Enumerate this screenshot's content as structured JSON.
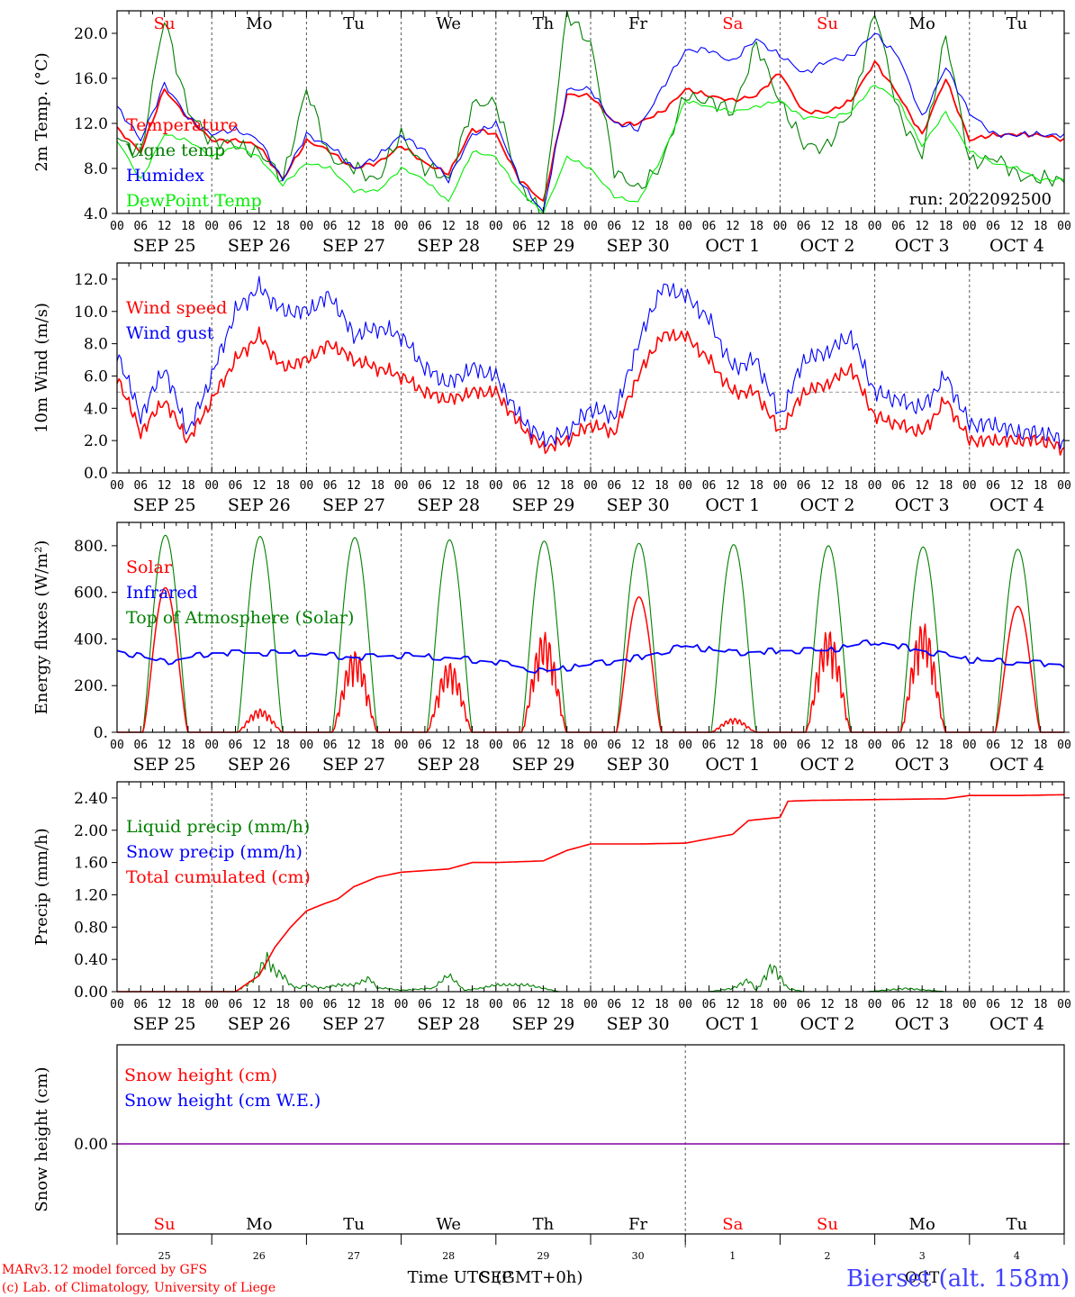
{
  "days": [
    "Su",
    "Mo",
    "Tu",
    "We",
    "Th",
    "Fr",
    "Sa",
    "Su",
    "Mo",
    "Tu"
  ],
  "weekend_days": [
    0,
    6,
    7
  ],
  "date_labels": [
    "SEP 25",
    "SEP 26",
    "SEP 27",
    "SEP 28",
    "SEP 29",
    "SEP 30",
    "OCT  1",
    "OCT  2",
    "OCT  3",
    "OCT  4"
  ],
  "hour_ticks": [
    "00",
    "06",
    "12",
    "18"
  ],
  "hour_tick_end": "00",
  "day_numbers": [
    "25",
    "26",
    "27",
    "28",
    "29",
    "30",
    "1",
    "2",
    "3",
    "4"
  ],
  "month_labels": [
    "SEP",
    "OCT"
  ],
  "xlabel": "Time UTC (GMT+0h)",
  "run_label": "run: 2022092500",
  "footer": {
    "line1": "MARv3.12 model forced by GFS",
    "line2": "(c) Lab. of Climatology, University of Liege",
    "station": "Bierset (alt. 158m)"
  },
  "colors": {
    "red": "#ff0000",
    "darkgreen": "#008000",
    "blue": "#0000ff",
    "lightgreen": "#00ee00",
    "purple": "#8000a0",
    "axis": "#000000"
  },
  "chart_data": [
    {
      "type": "line",
      "ylabel": "2m Temp. (°C)",
      "ylim": [
        4,
        22
      ],
      "yticks": [
        "4.0",
        "8.0",
        "12.0",
        "16.0",
        "20.0"
      ],
      "x_hours": [
        0,
        6,
        12,
        18,
        24,
        30,
        36,
        42,
        48,
        54,
        60,
        66,
        72,
        78,
        84,
        90,
        96,
        102,
        108,
        114,
        120,
        126,
        132,
        138,
        144,
        150,
        156,
        162,
        168,
        174,
        180,
        186,
        192,
        198,
        204,
        210,
        216,
        222,
        228,
        234,
        240
      ],
      "series": [
        {
          "name": "Temperature",
          "color": "red",
          "values": [
            11.5,
            9.5,
            15.0,
            12.5,
            10.5,
            10.5,
            10.0,
            7.0,
            10.5,
            9.5,
            8.0,
            8.5,
            10.0,
            8.5,
            7.5,
            11.5,
            11.0,
            7.0,
            5.0,
            14.5,
            14.5,
            12.0,
            12.0,
            13.0,
            15.0,
            14.5,
            14.0,
            14.5,
            16.5,
            13.0,
            13.0,
            14.0,
            17.5,
            14.5,
            11.0,
            16.0,
            10.5,
            11.0,
            11.0,
            11.0,
            10.5
          ]
        },
        {
          "name": "Vigne temp",
          "color": "darkgreen",
          "values": [
            11.0,
            9.0,
            21.5,
            13.0,
            10.5,
            10.0,
            9.5,
            7.0,
            15.0,
            9.0,
            8.0,
            7.0,
            11.0,
            8.0,
            7.0,
            13.5,
            14.0,
            6.5,
            4.0,
            22.0,
            19.0,
            8.0,
            6.0,
            8.5,
            14.5,
            14.0,
            13.0,
            19.0,
            14.0,
            10.0,
            10.0,
            13.0,
            22.0,
            13.0,
            9.0,
            20.0,
            8.5,
            9.0,
            7.5,
            7.0,
            7.0
          ]
        },
        {
          "name": "Humidex",
          "color": "blue",
          "values": [
            13.5,
            10.5,
            15.5,
            12.5,
            11.0,
            11.5,
            10.5,
            7.0,
            11.0,
            10.0,
            8.0,
            9.0,
            11.0,
            9.5,
            7.0,
            11.0,
            12.0,
            7.0,
            4.0,
            15.0,
            15.0,
            12.0,
            11.5,
            15.0,
            18.5,
            18.5,
            17.5,
            19.5,
            18.0,
            16.5,
            17.5,
            18.0,
            20.0,
            18.0,
            12.5,
            17.0,
            13.0,
            11.0,
            11.0,
            11.0,
            11.0
          ]
        },
        {
          "name": "DewPoint Temp",
          "color": "lightgreen",
          "values": [
            10.5,
            7.0,
            11.0,
            10.5,
            9.0,
            10.0,
            9.0,
            6.5,
            8.5,
            8.0,
            6.0,
            6.0,
            8.0,
            7.0,
            5.0,
            9.5,
            9.0,
            6.0,
            4.0,
            9.0,
            8.0,
            5.5,
            5.0,
            9.0,
            14.0,
            13.5,
            13.0,
            13.5,
            14.0,
            12.5,
            12.5,
            13.0,
            15.5,
            14.0,
            10.0,
            13.0,
            9.5,
            8.5,
            8.0,
            7.0,
            7.0
          ]
        }
      ]
    },
    {
      "type": "line",
      "ylabel": "10m Wind (m/s)",
      "ylim": [
        0,
        13
      ],
      "yticks": [
        "0.0",
        "2.0",
        "4.0",
        "6.0",
        "8.0",
        "10.0",
        "12.0"
      ],
      "reference_line": 5,
      "x_hours": [
        0,
        6,
        12,
        18,
        24,
        30,
        36,
        42,
        48,
        54,
        60,
        66,
        72,
        78,
        84,
        90,
        96,
        102,
        108,
        114,
        120,
        126,
        132,
        138,
        144,
        150,
        156,
        162,
        168,
        174,
        180,
        186,
        192,
        198,
        204,
        210,
        216,
        222,
        228,
        234,
        240
      ],
      "series": [
        {
          "name": "Wind speed",
          "color": "red",
          "values": [
            6.0,
            2.5,
            4.5,
            2.0,
            4.5,
            7.0,
            8.5,
            6.5,
            7.0,
            8.0,
            7.0,
            6.5,
            6.0,
            5.0,
            4.5,
            5.0,
            5.0,
            3.0,
            1.5,
            2.0,
            3.0,
            2.5,
            6.0,
            8.5,
            8.5,
            7.0,
            5.0,
            5.0,
            2.5,
            5.0,
            5.5,
            6.5,
            3.5,
            3.0,
            2.5,
            4.5,
            2.0,
            2.0,
            2.0,
            2.0,
            1.5
          ]
        },
        {
          "name": "Wind gust",
          "color": "blue",
          "values": [
            7.5,
            3.5,
            6.5,
            2.5,
            6.0,
            10.0,
            11.5,
            10.0,
            10.0,
            11.0,
            8.5,
            9.0,
            8.5,
            6.5,
            5.5,
            6.5,
            6.0,
            3.5,
            2.0,
            2.5,
            4.0,
            3.5,
            8.0,
            11.5,
            11.0,
            9.5,
            6.5,
            7.0,
            3.5,
            7.0,
            7.5,
            8.5,
            5.0,
            4.5,
            4.0,
            6.0,
            3.0,
            3.0,
            2.5,
            2.5,
            2.0
          ]
        }
      ]
    },
    {
      "type": "line",
      "ylabel": "Energy fluxes (W/m²)",
      "ylim": [
        0,
        900
      ],
      "yticks": [
        "0.",
        "200.",
        "400.",
        "600.",
        "800."
      ],
      "series": [
        {
          "name": "Solar",
          "color": "red",
          "peaks": [
            620,
            100,
            350,
            300,
            430,
            580,
            60,
            440,
            470,
            540
          ]
        },
        {
          "name": "Infrared",
          "color": "blue",
          "x_hours": [
            0,
            12,
            24,
            36,
            48,
            60,
            72,
            84,
            96,
            108,
            120,
            132,
            144,
            156,
            168,
            180,
            192,
            204,
            216,
            228,
            240
          ],
          "values": [
            350,
            300,
            340,
            340,
            340,
            320,
            330,
            320,
            300,
            260,
            290,
            320,
            370,
            340,
            350,
            350,
            390,
            350,
            310,
            300,
            290
          ]
        },
        {
          "name": "Top of Atmosphere (Solar)",
          "color": "darkgreen",
          "peaks": [
            845,
            840,
            835,
            825,
            820,
            810,
            805,
            800,
            795,
            785
          ]
        }
      ],
      "sunrise_hour": 6.5,
      "sunset_hour": 18.0
    },
    {
      "type": "line",
      "ylabel": "Precip (mm/h)",
      "ylim": [
        0,
        2.6
      ],
      "yticks": [
        "0.00",
        "0.40",
        "0.80",
        "1.20",
        "1.60",
        "2.00",
        "2.40"
      ],
      "series": [
        {
          "name": "Liquid precip (mm/h)",
          "color": "darkgreen",
          "x_hours": [
            0,
            30,
            34,
            38,
            40,
            42,
            44,
            46,
            48,
            52,
            56,
            60,
            64,
            66,
            68,
            72,
            80,
            84,
            88,
            92,
            96,
            100,
            104,
            108,
            112,
            150,
            156,
            160,
            162,
            166,
            170,
            174,
            178,
            182,
            186,
            190,
            200,
            210,
            220,
            230,
            240
          ],
          "values": [
            0,
            0,
            0.15,
            0.5,
            0.3,
            0.25,
            0.1,
            0.05,
            0.1,
            0.05,
            0.1,
            0.1,
            0.2,
            0.05,
            0.05,
            0.02,
            0.05,
            0.25,
            0.02,
            0.05,
            0.1,
            0.1,
            0.1,
            0.05,
            0,
            0,
            0.05,
            0.18,
            0.02,
            0.4,
            0.05,
            0,
            0,
            0,
            0,
            0,
            0.05,
            0,
            0,
            0,
            0
          ]
        },
        {
          "name": "Snow precip (mm/h)",
          "color": "blue",
          "x_hours": [
            0,
            240
          ],
          "values": [
            0,
            0
          ]
        },
        {
          "name": "Total cumulated (cm)",
          "color": "red",
          "x_hours": [
            0,
            24,
            30,
            36,
            40,
            44,
            48,
            52,
            56,
            60,
            66,
            72,
            78,
            84,
            90,
            96,
            108,
            114,
            120,
            132,
            144,
            156,
            160,
            168,
            170,
            176,
            192,
            210,
            216,
            228,
            240
          ],
          "values": [
            0,
            0,
            0,
            0.2,
            0.55,
            0.8,
            1.0,
            1.08,
            1.15,
            1.3,
            1.42,
            1.48,
            1.5,
            1.52,
            1.6,
            1.6,
            1.62,
            1.75,
            1.83,
            1.83,
            1.84,
            1.95,
            2.12,
            2.16,
            2.36,
            2.37,
            2.38,
            2.39,
            2.43,
            2.43,
            2.44
          ]
        }
      ]
    },
    {
      "type": "line",
      "ylabel": "Snow height (cm)",
      "ytick": "0.00",
      "series": [
        {
          "name": "Snow height (cm)",
          "color": "red",
          "values": [
            0,
            0
          ]
        },
        {
          "name": "Snow height (cm W.E.)",
          "color": "blue",
          "values": [
            0,
            0
          ]
        }
      ]
    }
  ]
}
